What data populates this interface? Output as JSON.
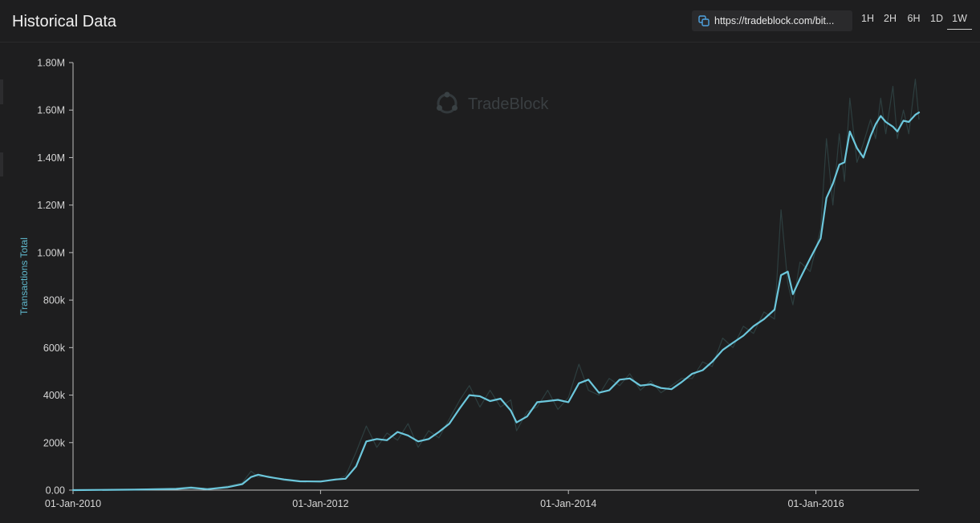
{
  "header": {
    "title": "Historical Data",
    "url": "https://tradeblock.com/bit...",
    "timeframes": [
      "1H",
      "2H",
      "6H",
      "1D",
      "1W"
    ],
    "active_timeframe": "1W"
  },
  "watermark": "TradeBlock",
  "colors": {
    "line": "#6cc7dc",
    "raw_line": "#2d3e3f",
    "axis": "#bdbdbd",
    "background": "#1e1e1f"
  },
  "chart_data": {
    "type": "line",
    "title": "",
    "xlabel": "",
    "ylabel": "Transactions Total",
    "x_range": [
      "2010-01-01",
      "2016-10-31"
    ],
    "ylim": [
      0,
      1800000
    ],
    "y_ticks": [
      0,
      200000,
      400000,
      600000,
      800000,
      1000000,
      1200000,
      1400000,
      1600000,
      1800000
    ],
    "y_tick_labels": [
      "0.00",
      "200k",
      "400k",
      "600k",
      "800k",
      "1.00M",
      "1.20M",
      "1.40M",
      "1.60M",
      "1.80M"
    ],
    "x_ticks": [
      "2010-01-01",
      "2012-01-01",
      "2014-01-01",
      "2016-01-01"
    ],
    "x_tick_labels": [
      "01-Jan-2010",
      "01-Jan-2012",
      "01-Jan-2014",
      "01-Jan-2016"
    ],
    "grid": false,
    "series": [
      {
        "style": "smoothed",
        "points": [
          [
            "2010-01-01",
            0
          ],
          [
            "2010-07-01",
            2000
          ],
          [
            "2010-11-01",
            5000
          ],
          [
            "2010-12-15",
            10000
          ],
          [
            "2011-02-01",
            4000
          ],
          [
            "2011-04-01",
            12000
          ],
          [
            "2011-05-15",
            25000
          ],
          [
            "2011-06-10",
            55000
          ],
          [
            "2011-07-01",
            65000
          ],
          [
            "2011-08-01",
            55000
          ],
          [
            "2011-09-15",
            45000
          ],
          [
            "2011-11-01",
            37000
          ],
          [
            "2012-01-01",
            36000
          ],
          [
            "2012-02-15",
            45000
          ],
          [
            "2012-03-15",
            48000
          ],
          [
            "2012-04-15",
            100000
          ],
          [
            "2012-05-15",
            205000
          ],
          [
            "2012-06-15",
            215000
          ],
          [
            "2012-07-15",
            210000
          ],
          [
            "2012-08-15",
            245000
          ],
          [
            "2012-09-15",
            230000
          ],
          [
            "2012-10-15",
            205000
          ],
          [
            "2012-11-15",
            215000
          ],
          [
            "2012-12-15",
            245000
          ],
          [
            "2013-01-15",
            280000
          ],
          [
            "2013-02-15",
            345000
          ],
          [
            "2013-03-15",
            400000
          ],
          [
            "2013-04-15",
            395000
          ],
          [
            "2013-05-15",
            375000
          ],
          [
            "2013-06-15",
            385000
          ],
          [
            "2013-07-15",
            335000
          ],
          [
            "2013-08-01",
            285000
          ],
          [
            "2013-09-01",
            310000
          ],
          [
            "2013-10-01",
            370000
          ],
          [
            "2013-11-01",
            375000
          ],
          [
            "2013-12-01",
            380000
          ],
          [
            "2014-01-01",
            370000
          ],
          [
            "2014-02-01",
            450000
          ],
          [
            "2014-03-01",
            465000
          ],
          [
            "2014-04-01",
            410000
          ],
          [
            "2014-05-01",
            420000
          ],
          [
            "2014-06-01",
            465000
          ],
          [
            "2014-07-01",
            470000
          ],
          [
            "2014-08-01",
            440000
          ],
          [
            "2014-09-01",
            445000
          ],
          [
            "2014-10-01",
            430000
          ],
          [
            "2014-11-01",
            425000
          ],
          [
            "2014-12-01",
            455000
          ],
          [
            "2015-01-01",
            490000
          ],
          [
            "2015-02-01",
            505000
          ],
          [
            "2015-03-01",
            540000
          ],
          [
            "2015-04-01",
            590000
          ],
          [
            "2015-05-01",
            620000
          ],
          [
            "2015-06-01",
            650000
          ],
          [
            "2015-07-01",
            690000
          ],
          [
            "2015-08-01",
            720000
          ],
          [
            "2015-09-01",
            760000
          ],
          [
            "2015-09-20",
            905000
          ],
          [
            "2015-10-10",
            920000
          ],
          [
            "2015-10-25",
            825000
          ],
          [
            "2015-11-15",
            890000
          ],
          [
            "2015-12-15",
            975000
          ],
          [
            "2016-01-15",
            1060000
          ],
          [
            "2016-02-01",
            1230000
          ],
          [
            "2016-02-20",
            1290000
          ],
          [
            "2016-03-10",
            1370000
          ],
          [
            "2016-03-25",
            1380000
          ],
          [
            "2016-04-10",
            1510000
          ],
          [
            "2016-05-01",
            1440000
          ],
          [
            "2016-05-20",
            1400000
          ],
          [
            "2016-06-10",
            1490000
          ],
          [
            "2016-06-25",
            1540000
          ],
          [
            "2016-07-10",
            1575000
          ],
          [
            "2016-07-25",
            1550000
          ],
          [
            "2016-08-15",
            1530000
          ],
          [
            "2016-08-28",
            1510000
          ],
          [
            "2016-09-15",
            1555000
          ],
          [
            "2016-10-01",
            1550000
          ],
          [
            "2016-10-20",
            1580000
          ],
          [
            "2016-10-31",
            1590000
          ]
        ]
      },
      {
        "style": "raw",
        "points": [
          [
            "2010-01-01",
            0
          ],
          [
            "2010-07-01",
            3000
          ],
          [
            "2010-11-01",
            8000
          ],
          [
            "2010-12-15",
            15000
          ],
          [
            "2011-02-01",
            3000
          ],
          [
            "2011-04-01",
            18000
          ],
          [
            "2011-05-15",
            30000
          ],
          [
            "2011-06-10",
            80000
          ],
          [
            "2011-07-01",
            55000
          ],
          [
            "2011-08-01",
            60000
          ],
          [
            "2011-09-15",
            40000
          ],
          [
            "2011-11-01",
            35000
          ],
          [
            "2012-01-01",
            40000
          ],
          [
            "2012-02-15",
            42000
          ],
          [
            "2012-03-15",
            60000
          ],
          [
            "2012-04-15",
            160000
          ],
          [
            "2012-05-15",
            270000
          ],
          [
            "2012-06-15",
            180000
          ],
          [
            "2012-07-15",
            240000
          ],
          [
            "2012-08-15",
            210000
          ],
          [
            "2012-09-15",
            280000
          ],
          [
            "2012-10-15",
            180000
          ],
          [
            "2012-11-15",
            250000
          ],
          [
            "2012-12-15",
            220000
          ],
          [
            "2013-01-15",
            300000
          ],
          [
            "2013-02-15",
            380000
          ],
          [
            "2013-03-15",
            440000
          ],
          [
            "2013-04-15",
            350000
          ],
          [
            "2013-05-15",
            420000
          ],
          [
            "2013-06-15",
            350000
          ],
          [
            "2013-07-15",
            380000
          ],
          [
            "2013-08-01",
            250000
          ],
          [
            "2013-09-01",
            330000
          ],
          [
            "2013-10-01",
            350000
          ],
          [
            "2013-11-01",
            420000
          ],
          [
            "2013-12-01",
            340000
          ],
          [
            "2014-01-01",
            390000
          ],
          [
            "2014-02-01",
            530000
          ],
          [
            "2014-03-01",
            420000
          ],
          [
            "2014-04-01",
            400000
          ],
          [
            "2014-05-01",
            470000
          ],
          [
            "2014-06-01",
            440000
          ],
          [
            "2014-07-01",
            490000
          ],
          [
            "2014-08-01",
            420000
          ],
          [
            "2014-09-01",
            460000
          ],
          [
            "2014-10-01",
            410000
          ],
          [
            "2014-11-01",
            440000
          ],
          [
            "2014-12-01",
            470000
          ],
          [
            "2015-01-01",
            470000
          ],
          [
            "2015-02-01",
            540000
          ],
          [
            "2015-03-01",
            520000
          ],
          [
            "2015-04-01",
            640000
          ],
          [
            "2015-05-01",
            600000
          ],
          [
            "2015-06-01",
            690000
          ],
          [
            "2015-07-01",
            660000
          ],
          [
            "2015-08-01",
            750000
          ],
          [
            "2015-09-01",
            720000
          ],
          [
            "2015-09-20",
            1180000
          ],
          [
            "2015-10-10",
            870000
          ],
          [
            "2015-10-25",
            780000
          ],
          [
            "2015-11-15",
            960000
          ],
          [
            "2015-12-15",
            920000
          ],
          [
            "2016-01-15",
            1100000
          ],
          [
            "2016-02-01",
            1480000
          ],
          [
            "2016-02-20",
            1200000
          ],
          [
            "2016-03-10",
            1500000
          ],
          [
            "2016-03-25",
            1300000
          ],
          [
            "2016-04-10",
            1650000
          ],
          [
            "2016-05-01",
            1380000
          ],
          [
            "2016-05-20",
            1460000
          ],
          [
            "2016-06-10",
            1560000
          ],
          [
            "2016-06-25",
            1480000
          ],
          [
            "2016-07-10",
            1650000
          ],
          [
            "2016-07-25",
            1500000
          ],
          [
            "2016-08-15",
            1700000
          ],
          [
            "2016-08-28",
            1480000
          ],
          [
            "2016-09-15",
            1600000
          ],
          [
            "2016-10-01",
            1500000
          ],
          [
            "2016-10-20",
            1730000
          ],
          [
            "2016-10-31",
            1560000
          ]
        ]
      }
    ]
  }
}
